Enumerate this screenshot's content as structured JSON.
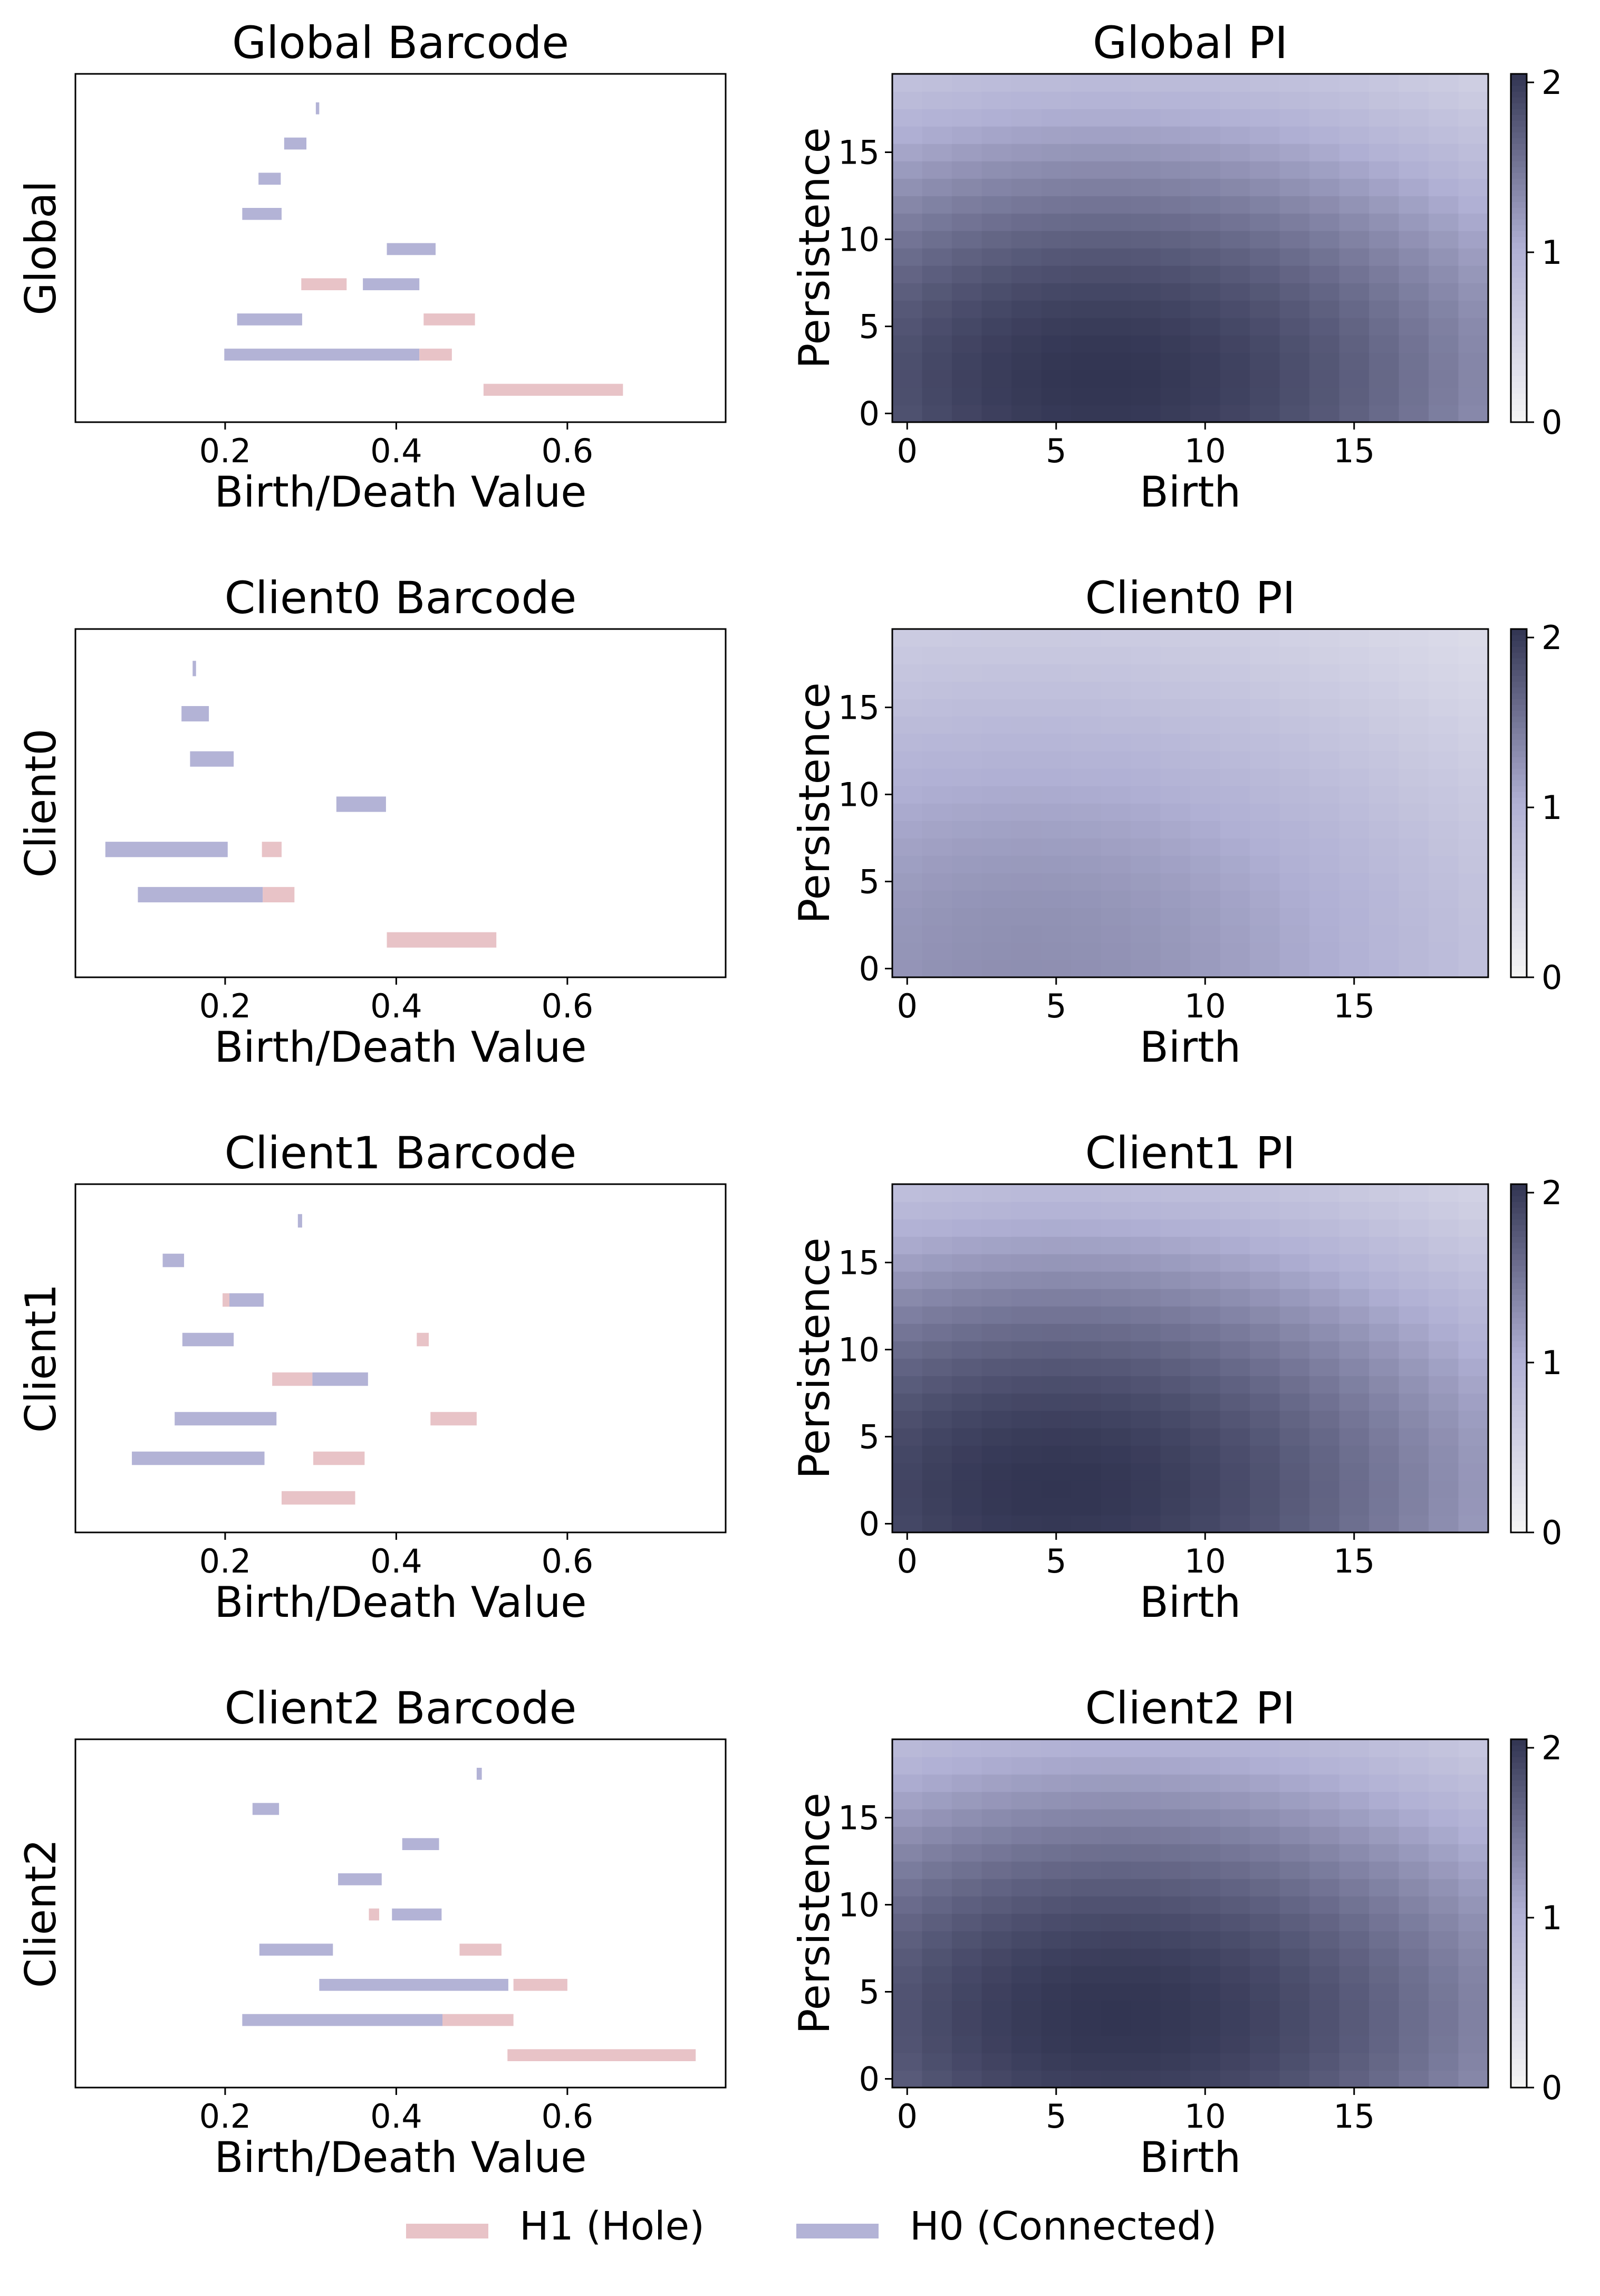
{
  "colors": {
    "h0": "#b3b3d6",
    "h1": "#e8c3c7",
    "pi_light": "#f5f5f5",
    "pi_mid": "#b0b0d4",
    "pi_dark": "#323552"
  },
  "legend": {
    "h1_label": "H1 (Hole)",
    "h0_label": "H0 (Connected)"
  },
  "chart_data": [
    {
      "type": "barcode",
      "title": "Global Barcode",
      "ylabel": "Global",
      "xlabel": "Birth/Death Value",
      "xlim": [
        0.025,
        0.785
      ],
      "xticks": [
        0.2,
        0.4,
        0.6
      ],
      "xtick_labels": [
        "0.2",
        "0.4",
        "0.6"
      ],
      "n_rows": 9,
      "bars": [
        {
          "dim": "H0",
          "row": 0,
          "birth": 0.306,
          "death": 0.31
        },
        {
          "dim": "H0",
          "row": 1,
          "birth": 0.269,
          "death": 0.295
        },
        {
          "dim": "H0",
          "row": 2,
          "birth": 0.239,
          "death": 0.265
        },
        {
          "dim": "H0",
          "row": 3,
          "birth": 0.22,
          "death": 0.266
        },
        {
          "dim": "H0",
          "row": 4,
          "birth": 0.389,
          "death": 0.446
        },
        {
          "dim": "H1",
          "row": 5,
          "birth": 0.289,
          "death": 0.342
        },
        {
          "dim": "H0",
          "row": 5,
          "birth": 0.361,
          "death": 0.427
        },
        {
          "dim": "H0",
          "row": 6,
          "birth": 0.214,
          "death": 0.29
        },
        {
          "dim": "H1",
          "row": 6,
          "birth": 0.432,
          "death": 0.492
        },
        {
          "dim": "H0",
          "row": 7,
          "birth": 0.199,
          "death": 0.427
        },
        {
          "dim": "H1",
          "row": 7,
          "birth": 0.427,
          "death": 0.465
        },
        {
          "dim": "H1",
          "row": 8,
          "birth": 0.502,
          "death": 0.665
        }
      ]
    },
    {
      "type": "heatmap",
      "title": "Global PI",
      "xlabel": "Birth",
      "ylabel": "Persistence",
      "grid_size": 20,
      "xticks": [
        0,
        5,
        10,
        15
      ],
      "yticks": [
        0,
        5,
        10,
        15
      ],
      "colorbar_ticks": [
        0,
        1,
        2
      ],
      "vmin": 0,
      "vmax": 2.05,
      "gaussian": {
        "amplitude": 2.05,
        "x_center": 6.5,
        "sigma_x": 14.0,
        "y_center": 2.0,
        "sigma_y": 13.0
      }
    },
    {
      "type": "barcode",
      "title": "Client0 Barcode",
      "ylabel": "Client0",
      "xlabel": "Birth/Death Value",
      "xlim": [
        0.025,
        0.785
      ],
      "xticks": [
        0.2,
        0.4,
        0.6
      ],
      "xtick_labels": [
        "0.2",
        "0.4",
        "0.6"
      ],
      "n_rows": 7,
      "bars": [
        {
          "dim": "H0",
          "row": 0,
          "birth": 0.162,
          "death": 0.166
        },
        {
          "dim": "H0",
          "row": 1,
          "birth": 0.149,
          "death": 0.181
        },
        {
          "dim": "H0",
          "row": 2,
          "birth": 0.159,
          "death": 0.21
        },
        {
          "dim": "H0",
          "row": 3,
          "birth": 0.33,
          "death": 0.388
        },
        {
          "dim": "H0",
          "row": 4,
          "birth": 0.06,
          "death": 0.203
        },
        {
          "dim": "H1",
          "row": 4,
          "birth": 0.243,
          "death": 0.266
        },
        {
          "dim": "H0",
          "row": 5,
          "birth": 0.098,
          "death": 0.244
        },
        {
          "dim": "H1",
          "row": 5,
          "birth": 0.244,
          "death": 0.281
        },
        {
          "dim": "H1",
          "row": 6,
          "birth": 0.389,
          "death": 0.517
        }
      ]
    },
    {
      "type": "heatmap",
      "title": "Client0 PI",
      "xlabel": "Birth",
      "ylabel": "Persistence",
      "grid_size": 20,
      "xticks": [
        0,
        5,
        10,
        15
      ],
      "yticks": [
        0,
        5,
        10,
        15
      ],
      "colorbar_ticks": [
        0,
        1,
        2
      ],
      "vmin": 0,
      "vmax": 2.05,
      "gaussian": {
        "amplitude": 1.3,
        "x_center": 4.0,
        "sigma_x": 15.0,
        "y_center": 0.0,
        "sigma_y": 16.0
      }
    },
    {
      "type": "barcode",
      "title": "Client1 Barcode",
      "ylabel": "Client1",
      "xlabel": "Birth/Death Value",
      "xlim": [
        0.025,
        0.785
      ],
      "xticks": [
        0.2,
        0.4,
        0.6
      ],
      "xtick_labels": [
        "0.2",
        "0.4",
        "0.6"
      ],
      "n_rows": 8,
      "bars": [
        {
          "dim": "H0",
          "row": 0,
          "birth": 0.285,
          "death": 0.29
        },
        {
          "dim": "H0",
          "row": 1,
          "birth": 0.127,
          "death": 0.152
        },
        {
          "dim": "H1",
          "row": 2,
          "birth": 0.197,
          "death": 0.205
        },
        {
          "dim": "H0",
          "row": 2,
          "birth": 0.205,
          "death": 0.245
        },
        {
          "dim": "H0",
          "row": 3,
          "birth": 0.15,
          "death": 0.21
        },
        {
          "dim": "H1",
          "row": 3,
          "birth": 0.424,
          "death": 0.438
        },
        {
          "dim": "H1",
          "row": 4,
          "birth": 0.255,
          "death": 0.302
        },
        {
          "dim": "H0",
          "row": 4,
          "birth": 0.302,
          "death": 0.367
        },
        {
          "dim": "H0",
          "row": 5,
          "birth": 0.141,
          "death": 0.26
        },
        {
          "dim": "H1",
          "row": 5,
          "birth": 0.44,
          "death": 0.494
        },
        {
          "dim": "H0",
          "row": 6,
          "birth": 0.091,
          "death": 0.246
        },
        {
          "dim": "H1",
          "row": 6,
          "birth": 0.303,
          "death": 0.363
        },
        {
          "dim": "H1",
          "row": 7,
          "birth": 0.266,
          "death": 0.352
        }
      ]
    },
    {
      "type": "heatmap",
      "title": "Client1 PI",
      "xlabel": "Birth",
      "ylabel": "Persistence",
      "grid_size": 20,
      "xticks": [
        0,
        5,
        10,
        15
      ],
      "yticks": [
        0,
        5,
        10,
        15
      ],
      "colorbar_ticks": [
        0,
        1,
        2
      ],
      "vmin": 0,
      "vmax": 2.05,
      "gaussian": {
        "amplitude": 2.05,
        "x_center": 5.0,
        "sigma_x": 14.0,
        "y_center": 2.0,
        "sigma_y": 13.0
      }
    },
    {
      "type": "barcode",
      "title": "Client2 Barcode",
      "ylabel": "Client2",
      "xlabel": "Birth/Death Value",
      "xlim": [
        0.025,
        0.785
      ],
      "xticks": [
        0.2,
        0.4,
        0.6
      ],
      "xtick_labels": [
        "0.2",
        "0.4",
        "0.6"
      ],
      "n_rows": 9,
      "bars": [
        {
          "dim": "H0",
          "row": 0,
          "birth": 0.494,
          "death": 0.5
        },
        {
          "dim": "H0",
          "row": 1,
          "birth": 0.232,
          "death": 0.263
        },
        {
          "dim": "H0",
          "row": 2,
          "birth": 0.407,
          "death": 0.45
        },
        {
          "dim": "H0",
          "row": 3,
          "birth": 0.332,
          "death": 0.383
        },
        {
          "dim": "H1",
          "row": 4,
          "birth": 0.368,
          "death": 0.38
        },
        {
          "dim": "H0",
          "row": 4,
          "birth": 0.395,
          "death": 0.453
        },
        {
          "dim": "H0",
          "row": 5,
          "birth": 0.24,
          "death": 0.326
        },
        {
          "dim": "H1",
          "row": 5,
          "birth": 0.474,
          "death": 0.523
        },
        {
          "dim": "H0",
          "row": 6,
          "birth": 0.31,
          "death": 0.531
        },
        {
          "dim": "H1",
          "row": 6,
          "birth": 0.537,
          "death": 0.6
        },
        {
          "dim": "H0",
          "row": 7,
          "birth": 0.22,
          "death": 0.454
        },
        {
          "dim": "H1",
          "row": 7,
          "birth": 0.454,
          "death": 0.537
        },
        {
          "dim": "H1",
          "row": 8,
          "birth": 0.53,
          "death": 0.75
        }
      ]
    },
    {
      "type": "heatmap",
      "title": "Client2 PI",
      "xlabel": "Birth",
      "ylabel": "Persistence",
      "grid_size": 20,
      "xticks": [
        0,
        5,
        10,
        15
      ],
      "yticks": [
        0,
        5,
        10,
        15
      ],
      "colorbar_ticks": [
        0,
        1,
        2
      ],
      "vmin": 0,
      "vmax": 2.05,
      "gaussian": {
        "amplitude": 2.05,
        "x_center": 7.0,
        "sigma_x": 14.0,
        "y_center": 3.5,
        "sigma_y": 13.0
      }
    }
  ]
}
